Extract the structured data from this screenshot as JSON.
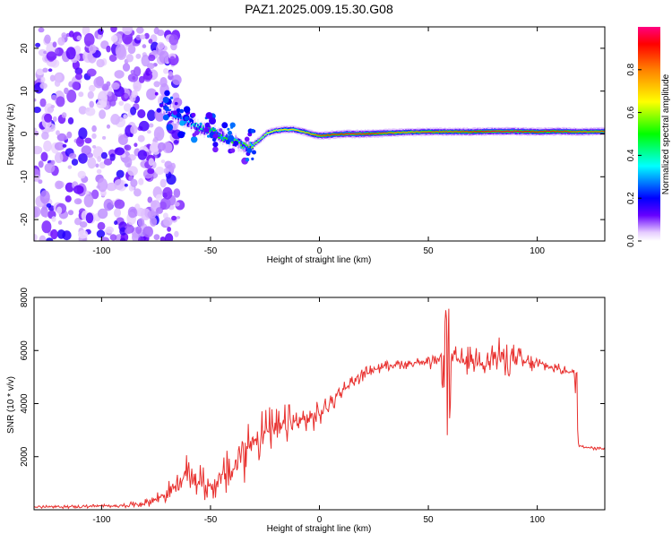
{
  "figure": {
    "title": "PAZ1.2025.009.15.30.G08"
  },
  "chart_data": [
    {
      "type": "heatmap",
      "title": "PAZ1.2025.009.15.30.G08",
      "xlabel": "Height of straight line (km)",
      "ylabel": "Frequency (Hz)",
      "xlim": [
        -131,
        131
      ],
      "ylim": [
        -25,
        25
      ],
      "xticks": [
        -100,
        -50,
        0,
        50,
        100
      ],
      "yticks": [
        -20,
        -10,
        0,
        10,
        20
      ],
      "colorbar": {
        "label": "Normalized spectral amplitude",
        "range": [
          0,
          1
        ],
        "ticks": [
          0.0,
          0.2,
          0.4,
          0.6,
          0.8
        ],
        "tick_labels": [
          "0.0",
          "0.2",
          "0.4",
          "0.6",
          "0.8"
        ],
        "colormap": [
          "#ffffff",
          "#e6ccff",
          "#6600ff",
          "#0000ff",
          "#00ffff",
          "#00ff00",
          "#ffff00",
          "#ff8000",
          "#ff0000",
          "#ff0080"
        ]
      },
      "ridge": {
        "description": "dominant frequency trace",
        "x": [
          -72,
          -68,
          -64,
          -60,
          -56,
          -52,
          -48,
          -44,
          -40,
          -36,
          -33,
          -30,
          -27,
          -24,
          -20,
          -16,
          -12,
          -8,
          -4,
          0,
          4,
          8,
          12,
          20,
          30,
          40,
          50,
          60,
          70,
          80,
          90,
          100,
          110,
          120,
          131
        ],
        "y": [
          6.5,
          5.0,
          3.6,
          2.6,
          1.6,
          1.0,
          0.3,
          -0.8,
          -1.6,
          -2.5,
          -3.0,
          -2.4,
          -1.2,
          0.2,
          0.8,
          1.0,
          1.0,
          0.6,
          0.0,
          -0.4,
          -0.3,
          -0.1,
          0.0,
          0.0,
          0.2,
          0.4,
          0.5,
          0.5,
          0.5,
          0.6,
          0.6,
          0.5,
          0.6,
          0.5,
          0.6
        ],
        "amplitude": [
          0.2,
          0.25,
          0.3,
          0.35,
          0.4,
          0.45,
          0.5,
          0.5,
          0.55,
          0.55,
          0.55,
          0.6,
          0.6,
          0.65,
          0.7,
          0.7,
          0.7,
          0.75,
          0.8,
          0.85,
          0.9,
          0.9,
          0.95,
          0.95,
          0.85,
          0.8,
          0.85,
          0.85,
          0.9,
          0.95,
          0.95,
          0.9,
          0.9,
          0.85,
          0.85
        ]
      },
      "noise_region": {
        "x_range": [
          -131,
          -70
        ],
        "y_range": [
          -25,
          25
        ],
        "amplitude": 0.15
      }
    },
    {
      "type": "line",
      "xlabel": "Height of straight line (km)",
      "ylabel": "SNR (10 * v/v)",
      "xlim": [
        -131,
        131
      ],
      "ylim": [
        0,
        8000
      ],
      "xticks": [
        -100,
        -50,
        0,
        50,
        100
      ],
      "yticks": [
        2000,
        4000,
        6000,
        8000
      ],
      "color": "#e8302e",
      "series": [
        {
          "x": [
            -131,
            -110,
            -90,
            -80,
            -75,
            -70,
            -65,
            -60,
            -55,
            -50,
            -45,
            -40,
            -35,
            -30,
            -25,
            -20,
            -15,
            -10,
            -5,
            0,
            5,
            10,
            15,
            20,
            25,
            30,
            35,
            40,
            45,
            50,
            55,
            58,
            60,
            62,
            65,
            70,
            75,
            80,
            85,
            90,
            95,
            100,
            105,
            110,
            115,
            117,
            119,
            125,
            131
          ],
          "y": [
            100,
            120,
            160,
            250,
            400,
            650,
            900,
            1400,
            1050,
            850,
            1200,
            1500,
            2100,
            2700,
            2900,
            3000,
            3200,
            3300,
            3400,
            3600,
            4000,
            4450,
            4800,
            5100,
            5300,
            5400,
            5500,
            5500,
            5550,
            5500,
            5600,
            5650,
            5500,
            5700,
            5600,
            5650,
            5650,
            5700,
            5700,
            5650,
            5550,
            5500,
            5400,
            5300,
            5200,
            5150,
            2400,
            2350,
            2300
          ],
          "spread": [
            60,
            60,
            80,
            150,
            250,
            400,
            600,
            800,
            700,
            600,
            800,
            1000,
            1200,
            1100,
            1000,
            900,
            800,
            700,
            600,
            500,
            400,
            350,
            300,
            250,
            220,
            200,
            200,
            200,
            220,
            250,
            300,
            1800,
            500,
            500,
            500,
            600,
            700,
            900,
            700,
            600,
            400,
            300,
            250,
            200,
            150,
            120,
            100,
            100,
            100
          ]
        }
      ]
    }
  ]
}
